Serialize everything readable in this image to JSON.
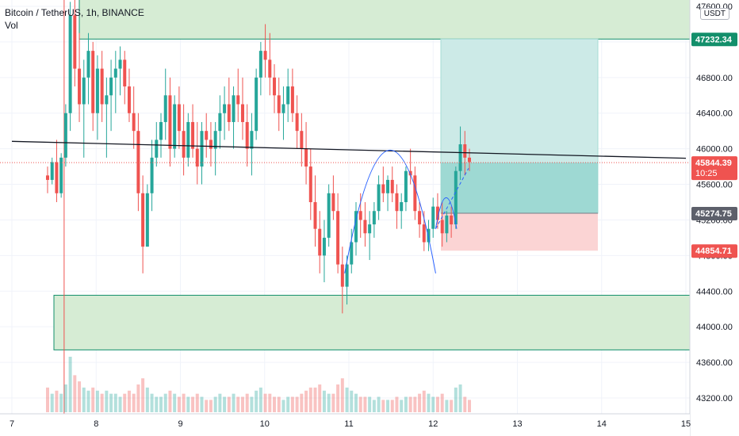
{
  "header": {
    "title": "Bitcoin / TetherUS, 1h, BINANCE",
    "indicator": "Vol"
  },
  "currency_badge": "USDT",
  "colors": {
    "up": "#26a69a",
    "down": "#ef5350",
    "zone_fill": "#d6ecd4",
    "zone_stroke": "#138f6b",
    "target_fill": "#cceae7",
    "target_dark": "#8fd3cc",
    "stop_fill": "#fbd4d4",
    "line": "#131722",
    "arc": "#2962ff"
  },
  "chart_data": {
    "type": "candlestick",
    "symbol": "Bitcoin / TetherUS",
    "interval": "1h",
    "exchange": "BINANCE",
    "x_ticks": [
      "7",
      "8",
      "9",
      "10",
      "11",
      "12",
      "13",
      "14",
      "15"
    ],
    "y_ticks": [
      "47600.00",
      "47200.00",
      "46800.00",
      "46400.00",
      "46000.00",
      "45600.00",
      "45200.00",
      "44800.00",
      "44400.00",
      "44000.00",
      "43600.00",
      "43200.00"
    ],
    "y_tick_values": [
      47600,
      47200,
      46800,
      46400,
      46000,
      45600,
      45200,
      44800,
      44400,
      44000,
      43600,
      43200
    ],
    "ylim": [
      43030,
      47750
    ],
    "price_labels": [
      {
        "text": "47232.34",
        "value": 47232.34,
        "color": "#138f6b"
      },
      {
        "text": "45844.39",
        "sub": "10:25",
        "value": 45844.39,
        "color": "#ef5350"
      },
      {
        "text": "45274.75",
        "value": 45274.75,
        "color": "#5d606b"
      },
      {
        "text": "44854.71",
        "value": 44854.71,
        "color": "#ef5350"
      }
    ],
    "candles_ohlc": [
      [
        45700,
        45800,
        45500,
        45650
      ],
      [
        45650,
        45900,
        45600,
        45850
      ],
      [
        45850,
        46100,
        45400,
        45500
      ],
      [
        45500,
        45950,
        45450,
        45900
      ],
      [
        45900,
        46500,
        45800,
        46400
      ],
      [
        46400,
        47650,
        46200,
        47500
      ],
      [
        47500,
        47750,
        46700,
        46900
      ],
      [
        46900,
        47300,
        46300,
        46500
      ],
      [
        46500,
        47000,
        45900,
        46800
      ],
      [
        46800,
        47300,
        46500,
        47100
      ],
      [
        47100,
        47200,
        46200,
        46400
      ],
      [
        46400,
        47050,
        46100,
        46900
      ],
      [
        46900,
        47100,
        46300,
        46500
      ],
      [
        46500,
        46800,
        45900,
        46600
      ],
      [
        46600,
        47000,
        46200,
        46800
      ],
      [
        46800,
        47100,
        46400,
        46900
      ],
      [
        46900,
        47150,
        46600,
        47000
      ],
      [
        47000,
        47100,
        46500,
        46700
      ],
      [
        46700,
        46900,
        46300,
        46400
      ],
      [
        46400,
        46700,
        46000,
        46200
      ],
      [
        46200,
        46400,
        45300,
        45500
      ],
      [
        45500,
        45700,
        44600,
        44900
      ],
      [
        44900,
        45600,
        44900,
        45500
      ],
      [
        45500,
        46100,
        45300,
        45900
      ],
      [
        45900,
        46300,
        45800,
        46100
      ],
      [
        46100,
        46400,
        45900,
        46300
      ],
      [
        46300,
        46900,
        46100,
        46600
      ],
      [
        46600,
        46800,
        45800,
        46000
      ],
      [
        46000,
        46600,
        45900,
        46500
      ],
      [
        46500,
        46700,
        46000,
        46200
      ],
      [
        46200,
        46500,
        45700,
        45900
      ],
      [
        45900,
        46400,
        45800,
        46300
      ],
      [
        46300,
        46500,
        45900,
        46000
      ],
      [
        46000,
        46300,
        45600,
        45800
      ],
      [
        45800,
        46300,
        45600,
        46200
      ],
      [
        46200,
        46400,
        45900,
        46100
      ],
      [
        46100,
        46300,
        45800,
        46000
      ],
      [
        46000,
        46300,
        45700,
        46200
      ],
      [
        46200,
        46600,
        46000,
        46400
      ],
      [
        46400,
        46700,
        46100,
        46500
      ],
      [
        46500,
        46800,
        46200,
        46300
      ],
      [
        46300,
        46700,
        46000,
        46600
      ],
      [
        46600,
        46900,
        46300,
        46500
      ],
      [
        46500,
        46800,
        46100,
        46300
      ],
      [
        46300,
        46500,
        45800,
        46000
      ],
      [
        46000,
        46400,
        45700,
        46200
      ],
      [
        46200,
        46900,
        46100,
        46800
      ],
      [
        46800,
        47200,
        46600,
        47100
      ],
      [
        47100,
        47400,
        46800,
        47000
      ],
      [
        47000,
        47300,
        46600,
        46800
      ],
      [
        46800,
        46950,
        46400,
        46600
      ],
      [
        46600,
        46800,
        46200,
        46400
      ],
      [
        46400,
        46700,
        46100,
        46500
      ],
      [
        46500,
        46900,
        46300,
        46700
      ],
      [
        46700,
        46900,
        46300,
        46400
      ],
      [
        46400,
        46600,
        46000,
        46200
      ],
      [
        46200,
        46400,
        45800,
        46000
      ],
      [
        46000,
        46300,
        45600,
        45800
      ],
      [
        45800,
        46000,
        45200,
        45400
      ],
      [
        45400,
        45700,
        44900,
        45100
      ],
      [
        45100,
        45300,
        44600,
        44800
      ],
      [
        44800,
        45200,
        44500,
        45000
      ],
      [
        45000,
        45600,
        44900,
        45500
      ],
      [
        45500,
        45700,
        45200,
        45300
      ],
      [
        45300,
        45500,
        44600,
        44700
      ],
      [
        44700,
        44900,
        44150,
        44450
      ],
      [
        44450,
        44800,
        44250,
        44700
      ],
      [
        44700,
        45100,
        44600,
        44950
      ],
      [
        44950,
        45400,
        44800,
        45300
      ],
      [
        45300,
        45500,
        45000,
        45200
      ],
      [
        45200,
        45400,
        44900,
        45050
      ],
      [
        45050,
        45300,
        44750,
        45150
      ],
      [
        45150,
        45400,
        45000,
        45300
      ],
      [
        45300,
        45700,
        45200,
        45600
      ],
      [
        45600,
        45800,
        45400,
        45500
      ],
      [
        45500,
        45700,
        45300,
        45650
      ],
      [
        45650,
        45800,
        45400,
        45500
      ],
      [
        45500,
        45600,
        45100,
        45300
      ],
      [
        45300,
        45500,
        45100,
        45400
      ],
      [
        45400,
        45800,
        45300,
        45750
      ],
      [
        45750,
        46000,
        45600,
        45700
      ],
      [
        45700,
        45800,
        45200,
        45300
      ],
      [
        45300,
        45400,
        45000,
        45150
      ],
      [
        45150,
        45300,
        44850,
        44950
      ],
      [
        44950,
        45200,
        44850,
        45100
      ],
      [
        45100,
        45450,
        45000,
        45350
      ],
      [
        45350,
        45500,
        45100,
        45200
      ],
      [
        45200,
        45400,
        44900,
        45050
      ],
      [
        45050,
        45300,
        44950,
        45250
      ],
      [
        45250,
        45350,
        45000,
        45150
      ],
      [
        45150,
        45800,
        45100,
        45750
      ],
      [
        45750,
        46250,
        45650,
        46050
      ],
      [
        46050,
        46200,
        45700,
        45900
      ],
      [
        45900,
        46000,
        45750,
        45850
      ]
    ],
    "volumes": [
      40,
      30,
      35,
      30,
      45,
      90,
      60,
      50,
      40,
      35,
      40,
      35,
      30,
      35,
      30,
      30,
      25,
      30,
      35,
      30,
      45,
      55,
      40,
      30,
      25,
      25,
      30,
      35,
      30,
      25,
      30,
      25,
      25,
      30,
      25,
      20,
      20,
      25,
      30,
      25,
      25,
      30,
      25,
      25,
      30,
      25,
      35,
      40,
      30,
      30,
      25,
      25,
      20,
      25,
      25,
      25,
      30,
      35,
      40,
      40,
      45,
      35,
      30,
      30,
      45,
      55,
      40,
      35,
      30,
      25,
      25,
      25,
      20,
      25,
      20,
      20,
      20,
      25,
      20,
      25,
      25,
      25,
      30,
      35,
      30,
      25,
      25,
      30,
      20,
      20,
      40,
      45,
      25,
      20
    ],
    "volume_colors": "same as candle direction",
    "zones": [
      {
        "name": "resistance-zone",
        "top": 47750,
        "bottom": 47232.34
      },
      {
        "name": "support-zone",
        "top": 44354,
        "bottom": 43740
      }
    ],
    "position": {
      "entry": 45274.75,
      "target": 47232.34,
      "stop": 44854.71,
      "current": 45844.39
    },
    "trendline": {
      "x_from": 7,
      "y_from": 46083,
      "x_to": 15,
      "y_to": 45893
    },
    "vertical_line_x": 7.62,
    "arcs": [
      {
        "x_from": 10.95,
        "x_to": 12.03,
        "apex": 45985
      },
      {
        "x_from": 12.03,
        "x_to": 12.28,
        "apex": 45450
      }
    ]
  }
}
